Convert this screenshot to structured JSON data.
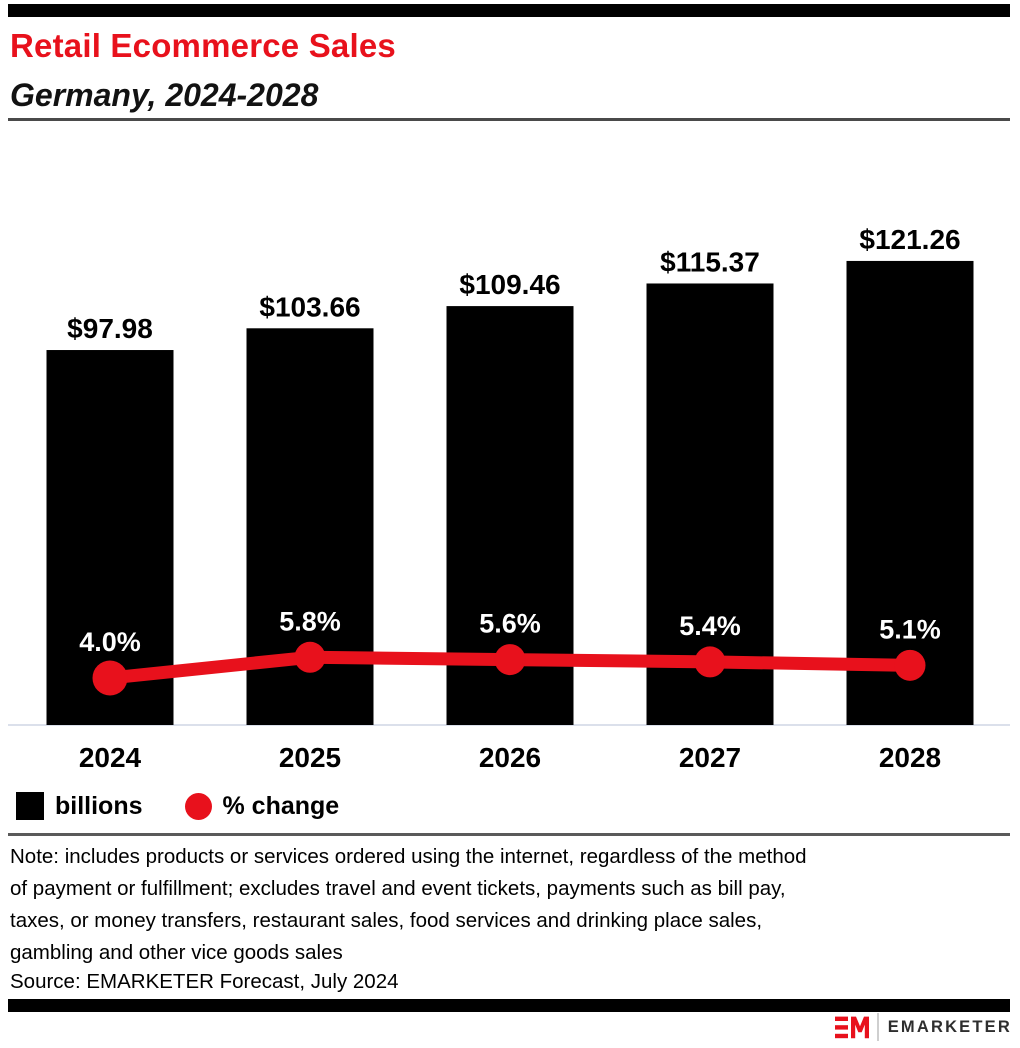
{
  "header": {
    "title": "Retail Ecommerce Sales",
    "subtitle": "Germany, 2024-2028"
  },
  "chart_data": {
    "type": "bar+line",
    "categories": [
      "2024",
      "2025",
      "2026",
      "2027",
      "2028"
    ],
    "series": [
      {
        "name": "billions",
        "type": "bar",
        "values": [
          97.98,
          103.66,
          109.46,
          115.37,
          121.26
        ],
        "labels": [
          "$97.98",
          "$103.66",
          "$109.46",
          "$115.37",
          "$121.26"
        ],
        "color": "#000000"
      },
      {
        "name": "% change",
        "type": "line",
        "values": [
          4.0,
          5.8,
          5.6,
          5.4,
          5.1
        ],
        "labels": [
          "4.0%",
          "5.8%",
          "5.6%",
          "5.4%",
          "5.1%"
        ],
        "color": "#e8111c"
      }
    ],
    "legend": [
      {
        "label": "billions",
        "swatch": "square",
        "color": "#000000"
      },
      {
        "label": "% change",
        "swatch": "circle",
        "color": "#e8111c"
      }
    ],
    "xlabel": "",
    "ylabel": "",
    "grid": false,
    "legend_position": "bottom-left"
  },
  "notes": {
    "note_lines": [
      "Note: includes products or services ordered using the internet, regardless of the method",
      "of payment or fulfillment; excludes travel and event tickets, payments such as bill pay,",
      "taxes, or money transfers, restaurant sales, food services and drinking place sales,",
      "gambling and other vice goods sales"
    ],
    "source": "Source: EMARKETER Forecast, July 2024"
  },
  "footer": {
    "brand": "EMARKETER"
  },
  "colors": {
    "accent_red": "#e8111c",
    "bar_black": "#000000",
    "axis_line": "#dbe0eb",
    "divider_dark": "#4a4a4a",
    "divider_mid": "#5a5a5a"
  }
}
